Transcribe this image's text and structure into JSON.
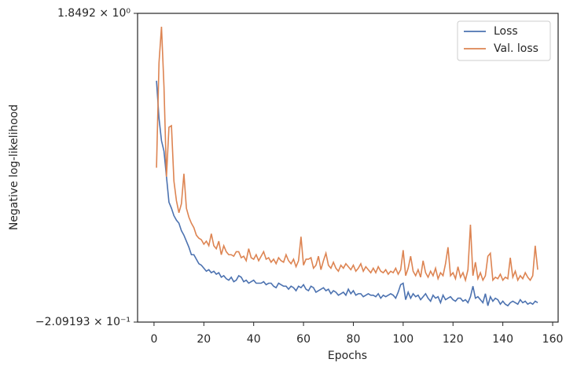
{
  "chart_data": {
    "type": "line",
    "xlabel": "Epochs",
    "ylabel": "Negative log-likelihood",
    "xlim": [
      -6.6,
      162.2
    ],
    "xticks": [
      0,
      20,
      40,
      60,
      80,
      100,
      120,
      140,
      160
    ],
    "ylim": [
      -0.209193,
      1.8492
    ],
    "yticks": [
      {
        "value": -0.209193,
        "label": "−2.09193 × 10⁻¹"
      },
      {
        "value": 1.8492,
        "label": "1.8492 × 10⁰"
      }
    ],
    "legend": "upper right",
    "grid": false,
    "x": [
      1,
      2,
      3,
      4,
      5,
      6,
      7,
      8,
      9,
      10,
      11,
      12,
      13,
      14,
      15,
      16,
      17,
      18,
      19,
      20,
      21,
      22,
      23,
      24,
      25,
      26,
      27,
      28,
      29,
      30,
      31,
      32,
      33,
      34,
      35,
      36,
      37,
      38,
      39,
      40,
      41,
      42,
      43,
      44,
      45,
      46,
      47,
      48,
      49,
      50,
      51,
      52,
      53,
      54,
      55,
      56,
      57,
      58,
      59,
      60,
      61,
      62,
      63,
      64,
      65,
      66,
      67,
      68,
      69,
      70,
      71,
      72,
      73,
      74,
      75,
      76,
      77,
      78,
      79,
      80,
      81,
      82,
      83,
      84,
      85,
      86,
      87,
      88,
      89,
      90,
      91,
      92,
      93,
      94,
      95,
      96,
      97,
      98,
      99,
      100,
      101,
      102,
      103,
      104,
      105,
      106,
      107,
      108,
      109,
      110,
      111,
      112,
      113,
      114,
      115,
      116,
      117,
      118,
      119,
      120,
      121,
      122,
      123,
      124,
      125,
      126,
      127,
      128,
      129,
      130,
      131,
      132,
      133,
      134,
      135,
      136,
      137,
      138,
      139,
      140,
      141,
      142,
      143,
      144,
      145,
      146,
      147,
      148,
      149,
      150,
      151,
      152,
      153,
      154
    ],
    "series": [
      {
        "name": "Loss",
        "color": "#4c72b0",
        "values": [
          1.4,
          1.15,
          1.0,
          0.93,
          0.76,
          0.59,
          0.55,
          0.5,
          0.47,
          0.45,
          0.4,
          0.37,
          0.33,
          0.29,
          0.24,
          0.24,
          0.21,
          0.18,
          0.17,
          0.15,
          0.13,
          0.14,
          0.12,
          0.13,
          0.11,
          0.12,
          0.09,
          0.1,
          0.08,
          0.07,
          0.09,
          0.06,
          0.07,
          0.1,
          0.09,
          0.06,
          0.07,
          0.05,
          0.06,
          0.07,
          0.05,
          0.05,
          0.05,
          0.06,
          0.04,
          0.05,
          0.05,
          0.03,
          0.02,
          0.05,
          0.04,
          0.03,
          0.03,
          0.01,
          0.03,
          0.02,
          0.0,
          0.03,
          0.02,
          0.04,
          0.01,
          0.0,
          0.03,
          0.02,
          -0.01,
          0.0,
          0.01,
          0.02,
          0.0,
          0.01,
          -0.02,
          0.0,
          -0.01,
          -0.03,
          -0.02,
          -0.01,
          -0.03,
          0.01,
          -0.02,
          0.0,
          -0.03,
          -0.02,
          -0.02,
          -0.04,
          -0.03,
          -0.02,
          -0.03,
          -0.03,
          -0.04,
          -0.02,
          -0.05,
          -0.03,
          -0.04,
          -0.03,
          -0.02,
          -0.03,
          -0.05,
          -0.01,
          0.04,
          0.05,
          -0.06,
          -0.01,
          -0.05,
          -0.02,
          -0.04,
          -0.03,
          -0.06,
          -0.04,
          -0.02,
          -0.05,
          -0.07,
          -0.03,
          -0.05,
          -0.04,
          -0.08,
          -0.03,
          -0.06,
          -0.05,
          -0.04,
          -0.06,
          -0.07,
          -0.05,
          -0.05,
          -0.07,
          -0.06,
          -0.08,
          -0.04,
          0.03,
          -0.05,
          -0.04,
          -0.06,
          -0.08,
          -0.02,
          -0.1,
          -0.04,
          -0.07,
          -0.05,
          -0.06,
          -0.09,
          -0.07,
          -0.09,
          -0.1,
          -0.08,
          -0.07,
          -0.08,
          -0.09,
          -0.06,
          -0.08,
          -0.07,
          -0.09,
          -0.08,
          -0.09,
          -0.07,
          -0.08
        ]
      },
      {
        "name": "Val. loss",
        "color": "#dd8452",
        "values": [
          0.82,
          1.52,
          1.76,
          1.36,
          0.76,
          1.09,
          1.1,
          0.73,
          0.6,
          0.52,
          0.58,
          0.78,
          0.55,
          0.49,
          0.45,
          0.42,
          0.37,
          0.35,
          0.34,
          0.31,
          0.33,
          0.3,
          0.38,
          0.3,
          0.28,
          0.33,
          0.24,
          0.3,
          0.26,
          0.24,
          0.24,
          0.23,
          0.26,
          0.26,
          0.22,
          0.23,
          0.2,
          0.28,
          0.22,
          0.21,
          0.24,
          0.2,
          0.23,
          0.26,
          0.21,
          0.22,
          0.19,
          0.21,
          0.18,
          0.22,
          0.2,
          0.19,
          0.24,
          0.2,
          0.18,
          0.21,
          0.16,
          0.2,
          0.36,
          0.17,
          0.21,
          0.21,
          0.22,
          0.15,
          0.17,
          0.23,
          0.14,
          0.2,
          0.25,
          0.17,
          0.15,
          0.19,
          0.15,
          0.13,
          0.17,
          0.15,
          0.18,
          0.16,
          0.14,
          0.17,
          0.13,
          0.15,
          0.18,
          0.13,
          0.16,
          0.14,
          0.12,
          0.15,
          0.12,
          0.16,
          0.13,
          0.12,
          0.14,
          0.11,
          0.13,
          0.12,
          0.15,
          0.11,
          0.14,
          0.27,
          0.1,
          0.15,
          0.23,
          0.13,
          0.1,
          0.14,
          0.09,
          0.2,
          0.12,
          0.09,
          0.13,
          0.1,
          0.15,
          0.08,
          0.12,
          0.1,
          0.18,
          0.29,
          0.1,
          0.12,
          0.08,
          0.16,
          0.09,
          0.12,
          0.07,
          0.14,
          0.44,
          0.1,
          0.19,
          0.08,
          0.12,
          0.07,
          0.1,
          0.23,
          0.25,
          0.07,
          0.09,
          0.08,
          0.11,
          0.07,
          0.09,
          0.08,
          0.22,
          0.09,
          0.13,
          0.07,
          0.1,
          0.08,
          0.12,
          0.09,
          0.07,
          0.1,
          0.3,
          0.14
        ]
      }
    ]
  }
}
